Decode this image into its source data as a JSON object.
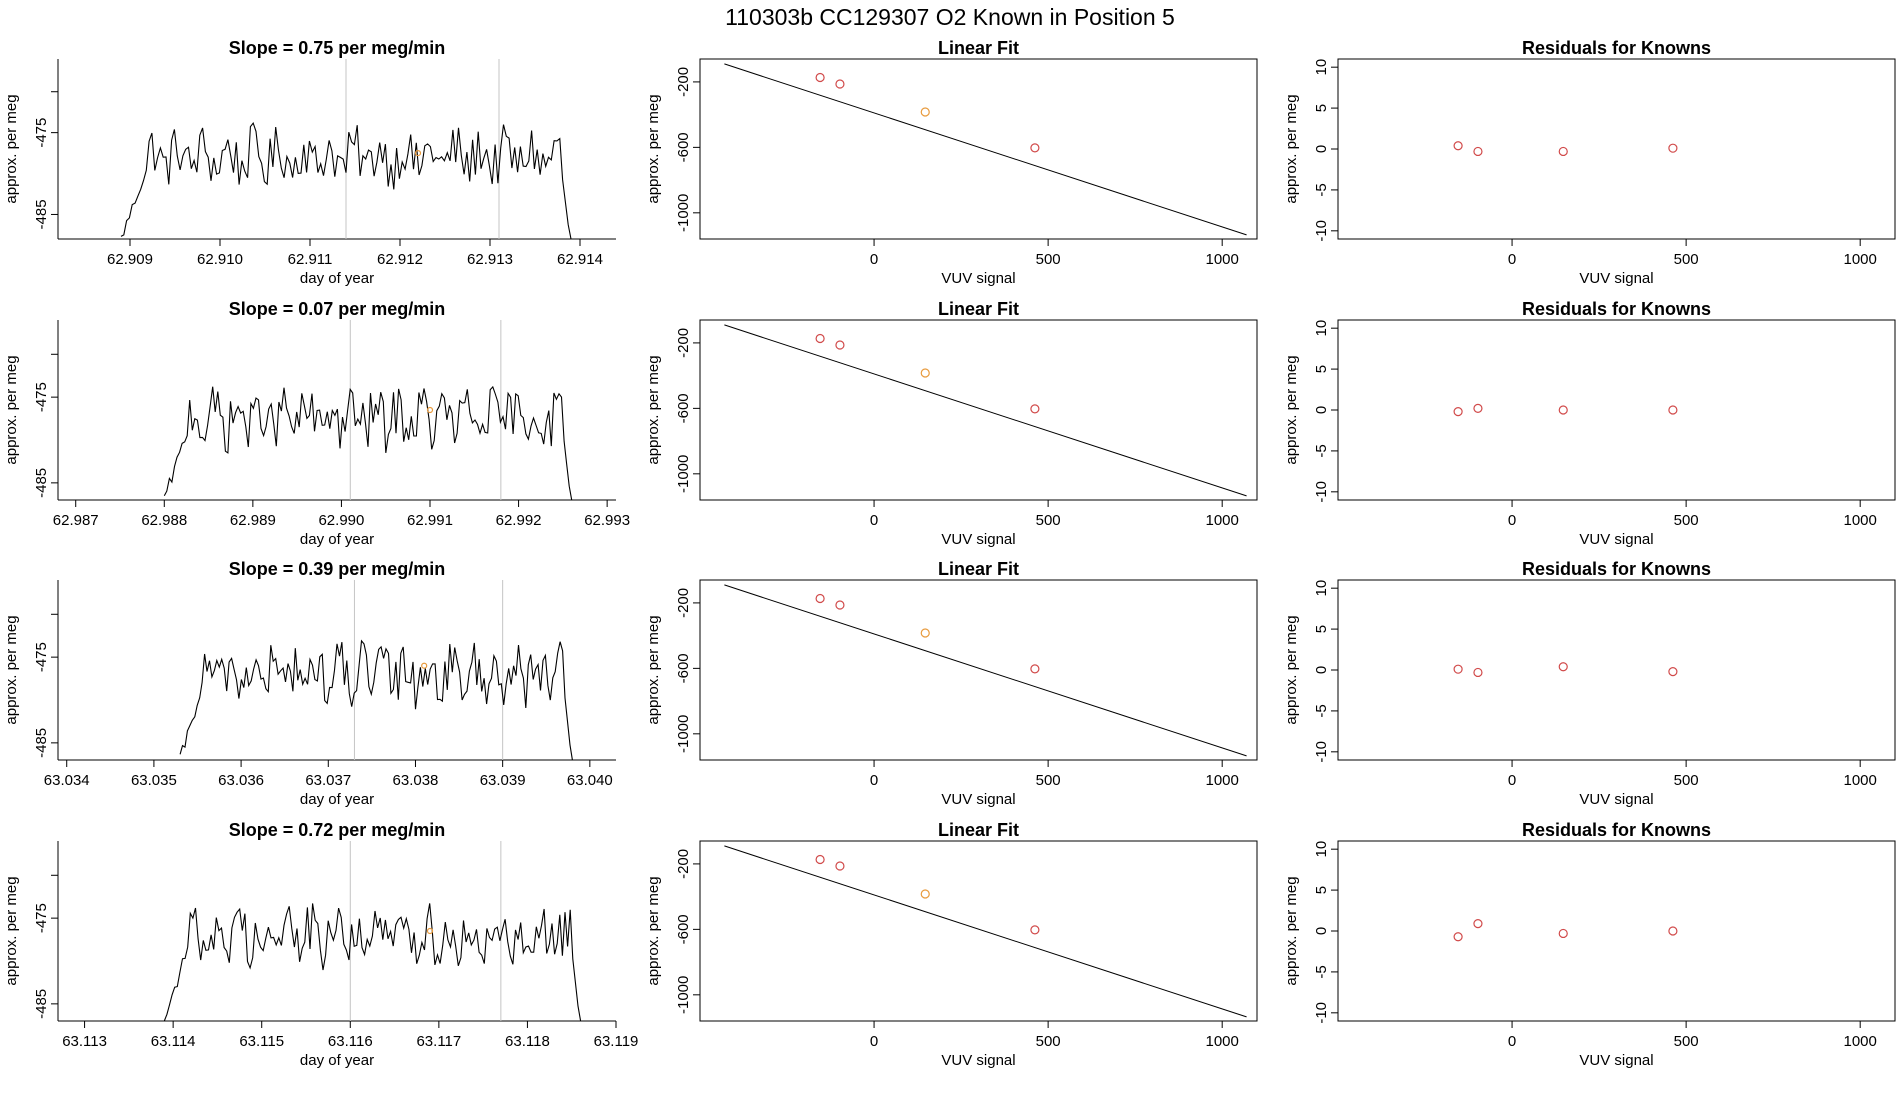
{
  "page_title": "110303b      CC129307    O2 Known in Position  5",
  "colors": {
    "known": "#d14a4a",
    "sample": "#e89a3c",
    "line": "#000000",
    "marker_line": "#c4c4c4"
  },
  "chart_data": [
    {
      "type": "line",
      "row": 1,
      "title": "Slope =  0.75  per meg/min",
      "xlabel": "day of year",
      "ylabel": "approx. per meg",
      "xlim": [
        62.9082,
        62.9144
      ],
      "ylim": [
        -488,
        -466
      ],
      "xticks": [
        "62.909",
        "62.910",
        "62.911",
        "62.912",
        "62.913",
        "62.914"
      ],
      "yticks": [
        "-475",
        "-485"
      ],
      "trace_start": 62.9089,
      "trace_end": 62.9139,
      "plateau": -478,
      "markers": [
        62.9114,
        62.9131
      ],
      "sample_point": [
        62.9122,
        -477.5
      ]
    },
    {
      "type": "scatter",
      "row": 1,
      "title": "Linear Fit",
      "xlabel": "VUV signal",
      "ylabel": "approx. per meg",
      "xlim": [
        -500,
        1100
      ],
      "ylim": [
        -1160,
        -60
      ],
      "xticks": [
        "0",
        "500",
        "1000"
      ],
      "yticks": [
        "-200",
        "-600",
        "-1000"
      ],
      "fit_line": [
        [
          -430,
          -90
        ],
        [
          1070,
          -1135
        ]
      ],
      "points": [
        [
          -155,
          -173
        ],
        [
          -98,
          -213
        ],
        [
          147,
          -384
        ],
        [
          462,
          -603
        ]
      ],
      "sample_index": 2
    },
    {
      "type": "scatter",
      "row": 1,
      "title": "Residuals for Knowns",
      "xlabel": "VUV signal",
      "ylabel": "approx. per meg",
      "xlim": [
        -500,
        1100
      ],
      "ylim": [
        -11,
        11
      ],
      "xticks": [
        "0",
        "500",
        "1000"
      ],
      "yticks": [
        "-10",
        "-5",
        "0",
        "5",
        "10"
      ],
      "points": [
        [
          -155,
          0.4
        ],
        [
          -98,
          -0.3
        ],
        [
          147,
          -0.3
        ],
        [
          462,
          0.1
        ]
      ]
    },
    {
      "type": "line",
      "row": 2,
      "title": "Slope =  0.07  per meg/min",
      "xlabel": "day of year",
      "ylabel": "approx. per meg",
      "xlim": [
        62.9868,
        62.9931
      ],
      "ylim": [
        -487,
        -466
      ],
      "xticks": [
        "62.987",
        "62.988",
        "62.989",
        "62.990",
        "62.991",
        "62.992",
        "62.993"
      ],
      "yticks": [
        "-475",
        "-485"
      ],
      "trace_start": 62.988,
      "trace_end": 62.9926,
      "plateau": -477.5,
      "markers": [
        62.9901,
        62.9918
      ],
      "sample_point": [
        62.991,
        -476.5
      ]
    },
    {
      "type": "scatter",
      "row": 2,
      "title": "Linear Fit",
      "xlabel": "VUV signal",
      "ylabel": "approx. per meg",
      "xlim": [
        -500,
        1100
      ],
      "ylim": [
        -1160,
        -60
      ],
      "xticks": [
        "0",
        "500",
        "1000"
      ],
      "yticks": [
        "-200",
        "-600",
        "-1000"
      ],
      "fit_line": [
        [
          -430,
          -90
        ],
        [
          1070,
          -1135
        ]
      ],
      "points": [
        [
          -155,
          -173
        ],
        [
          -98,
          -213
        ],
        [
          147,
          -384
        ],
        [
          462,
          -603
        ]
      ],
      "sample_index": 2
    },
    {
      "type": "scatter",
      "row": 2,
      "title": "Residuals for Knowns",
      "xlabel": "VUV signal",
      "ylabel": "approx. per meg",
      "xlim": [
        -500,
        1100
      ],
      "ylim": [
        -11,
        11
      ],
      "xticks": [
        "0",
        "500",
        "1000"
      ],
      "yticks": [
        "-10",
        "-5",
        "0",
        "5",
        "10"
      ],
      "points": [
        [
          -155,
          -0.2
        ],
        [
          -98,
          0.2
        ],
        [
          147,
          0.0
        ],
        [
          462,
          0.0
        ]
      ]
    },
    {
      "type": "line",
      "row": 3,
      "title": "Slope =  0.39  per meg/min",
      "xlabel": "day of year",
      "ylabel": "approx. per meg",
      "xlim": [
        63.0339,
        63.0403
      ],
      "ylim": [
        -487,
        -466
      ],
      "xticks": [
        "63.034",
        "63.035",
        "63.036",
        "63.037",
        "63.038",
        "63.039",
        "63.040"
      ],
      "yticks": [
        "-475",
        "-485"
      ],
      "trace_start": 63.0353,
      "trace_end": 63.0398,
      "plateau": -477,
      "markers": [
        63.0373,
        63.039
      ],
      "sample_point": [
        63.0381,
        -476
      ]
    },
    {
      "type": "scatter",
      "row": 3,
      "title": "Linear Fit",
      "xlabel": "VUV signal",
      "ylabel": "approx. per meg",
      "xlim": [
        -500,
        1100
      ],
      "ylim": [
        -1160,
        -60
      ],
      "xticks": [
        "0",
        "500",
        "1000"
      ],
      "yticks": [
        "-200",
        "-600",
        "-1000"
      ],
      "fit_line": [
        [
          -430,
          -90
        ],
        [
          1070,
          -1135
        ]
      ],
      "points": [
        [
          -155,
          -173
        ],
        [
          -98,
          -213
        ],
        [
          147,
          -384
        ],
        [
          462,
          -603
        ]
      ],
      "sample_index": 2
    },
    {
      "type": "scatter",
      "row": 3,
      "title": "Residuals for Knowns",
      "xlabel": "VUV signal",
      "ylabel": "approx. per meg",
      "xlim": [
        -500,
        1100
      ],
      "ylim": [
        -11,
        11
      ],
      "xticks": [
        "0",
        "500",
        "1000"
      ],
      "yticks": [
        "-10",
        "-5",
        "0",
        "5",
        "10"
      ],
      "points": [
        [
          -155,
          0.1
        ],
        [
          -98,
          -0.3
        ],
        [
          147,
          0.4
        ],
        [
          462,
          -0.2
        ]
      ]
    },
    {
      "type": "line",
      "row": 4,
      "title": "Slope =  0.72  per meg/min",
      "xlabel": "day of year",
      "ylabel": "approx. per meg",
      "xlim": [
        63.1127,
        63.119
      ],
      "ylim": [
        -487,
        -466
      ],
      "xticks": [
        "63.113",
        "63.114",
        "63.115",
        "63.116",
        "63.117",
        "63.118",
        "63.119"
      ],
      "yticks": [
        "-475",
        "-485"
      ],
      "trace_start": 63.1139,
      "trace_end": 63.1186,
      "plateau": -477,
      "markers": [
        63.116,
        63.1177
      ],
      "sample_point": [
        63.1169,
        -476.5
      ]
    },
    {
      "type": "scatter",
      "row": 4,
      "title": "Linear Fit",
      "xlabel": "VUV signal",
      "ylabel": "approx. per meg",
      "xlim": [
        -500,
        1100
      ],
      "ylim": [
        -1160,
        -60
      ],
      "xticks": [
        "0",
        "500",
        "1000"
      ],
      "yticks": [
        "-200",
        "-600",
        "-1000"
      ],
      "fit_line": [
        [
          -430,
          -90
        ],
        [
          1070,
          -1135
        ]
      ],
      "points": [
        [
          -155,
          -173
        ],
        [
          -98,
          -213
        ],
        [
          147,
          -384
        ],
        [
          462,
          -603
        ]
      ],
      "sample_index": 2
    },
    {
      "type": "scatter",
      "row": 4,
      "title": "Residuals for Knowns",
      "xlabel": "VUV signal",
      "ylabel": "approx. per meg",
      "xlim": [
        -500,
        1100
      ],
      "ylim": [
        -11,
        11
      ],
      "xticks": [
        "0",
        "500",
        "1000"
      ],
      "yticks": [
        "-10",
        "-5",
        "0",
        "5",
        "10"
      ],
      "points": [
        [
          -155,
          -0.7
        ],
        [
          -98,
          0.9
        ],
        [
          147,
          -0.3
        ],
        [
          462,
          0.0
        ]
      ]
    }
  ]
}
